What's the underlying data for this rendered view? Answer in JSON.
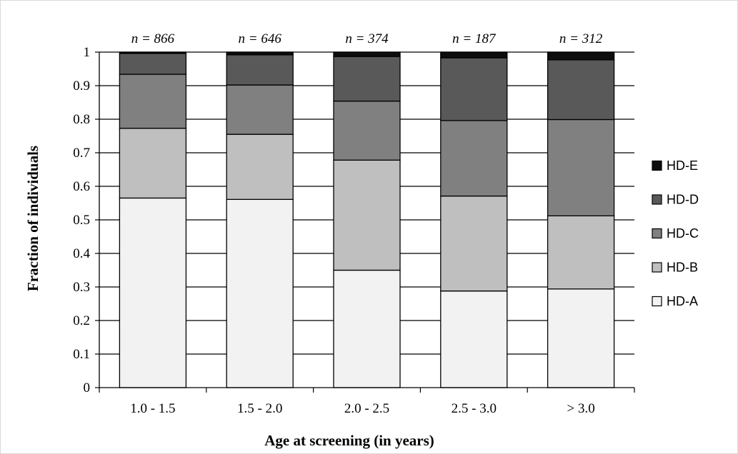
{
  "chart_data": {
    "type": "bar",
    "stacked": true,
    "title": "",
    "xlabel": "Age at screening (in years)",
    "ylabel": "Fraction of individuals",
    "ylim": [
      0,
      1
    ],
    "yticks": [
      "0",
      "0.1",
      "0.2",
      "0.3",
      "0.4",
      "0.5",
      "0.6",
      "0.7",
      "0.8",
      "0.9",
      "1"
    ],
    "grid": true,
    "legend_position": "right",
    "categories": [
      "1.0 - 1.5",
      "1.5 - 2.0",
      "2.0 - 2.5",
      "2.5 - 3.0",
      "> 3.0"
    ],
    "annotations": [
      "n = 866",
      "n = 646",
      "n = 374",
      "n = 187",
      "n = 312"
    ],
    "series": [
      {
        "name": "HD-A",
        "color": "#f2f2f2",
        "values": [
          0.565,
          0.561,
          0.35,
          0.288,
          0.294
        ]
      },
      {
        "name": "HD-B",
        "color": "#bfbfbf",
        "values": [
          0.208,
          0.194,
          0.328,
          0.283,
          0.218
        ]
      },
      {
        "name": "HD-C",
        "color": "#808080",
        "values": [
          0.161,
          0.147,
          0.176,
          0.225,
          0.287
        ]
      },
      {
        "name": "HD-D",
        "color": "#595959",
        "values": [
          0.062,
          0.09,
          0.133,
          0.187,
          0.178
        ]
      },
      {
        "name": "HD-E",
        "color": "#0d0d0d",
        "values": [
          0.004,
          0.008,
          0.013,
          0.017,
          0.023
        ]
      }
    ]
  }
}
